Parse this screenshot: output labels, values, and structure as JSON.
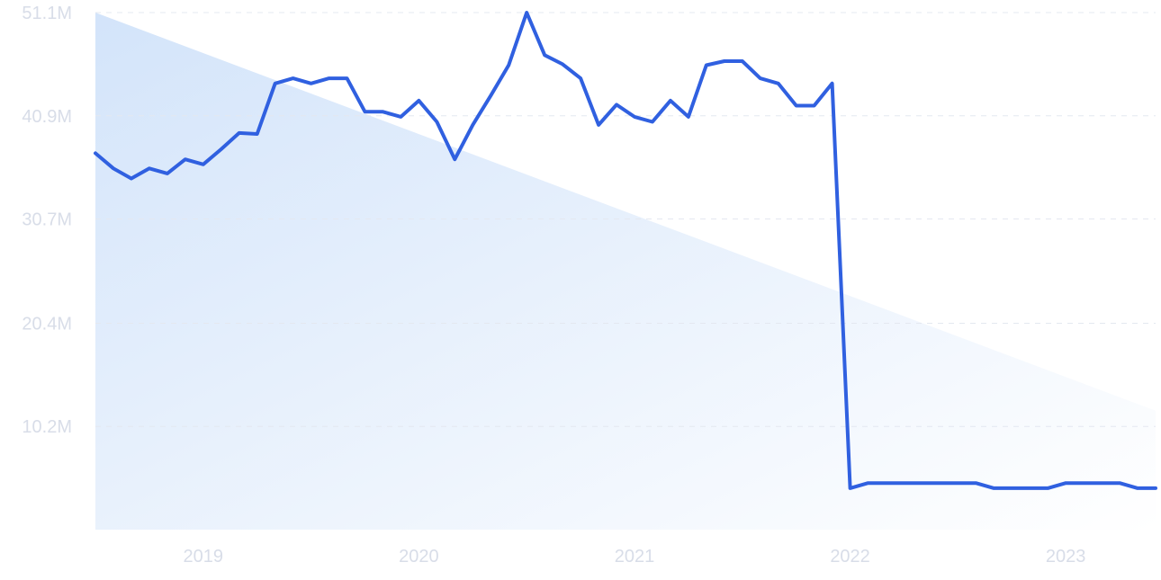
{
  "chart_data": {
    "type": "line",
    "title": "",
    "xlabel": "",
    "ylabel": "",
    "y_ticks": [
      "51.1M",
      "40.9M",
      "30.7M",
      "20.4M",
      "10.2M"
    ],
    "y_tick_values": [
      51.1,
      40.9,
      30.7,
      20.4,
      10.2
    ],
    "ylim": [
      0,
      51.1
    ],
    "x_ticks": [
      "2019",
      "2020",
      "2021",
      "2022",
      "2023"
    ],
    "x_tick_values": [
      "2019-01",
      "2020-01",
      "2021-01",
      "2022-01",
      "2023-01"
    ],
    "grid": true,
    "legend": "none",
    "colors": {
      "line": "#3060e0",
      "fill": "#d6e6fb",
      "grid": "#e4e8f0",
      "tick": "#d8dde8"
    },
    "series": [
      {
        "x": [
          "2018-07",
          "2018-08",
          "2018-09",
          "2018-10",
          "2018-11",
          "2018-12",
          "2019-01",
          "2019-02",
          "2019-03",
          "2019-04",
          "2019-05",
          "2019-06",
          "2019-07",
          "2019-08",
          "2019-09",
          "2019-10",
          "2019-11",
          "2019-12",
          "2020-01",
          "2020-02",
          "2020-03",
          "2020-04",
          "2020-05",
          "2020-06",
          "2020-07",
          "2020-08",
          "2020-09",
          "2020-10",
          "2020-11",
          "2020-12",
          "2021-01",
          "2021-02",
          "2021-03",
          "2021-04",
          "2021-05",
          "2021-06",
          "2021-07",
          "2021-08",
          "2021-09",
          "2021-10",
          "2021-11",
          "2021-12",
          "2022-01",
          "2022-02",
          "2022-03",
          "2022-04",
          "2022-05",
          "2022-06",
          "2022-07",
          "2022-08",
          "2022-09",
          "2022-10",
          "2022-11",
          "2022-12",
          "2023-01",
          "2023-02",
          "2023-03",
          "2023-04",
          "2023-05",
          "2023-06"
        ],
        "values": [
          37.2,
          35.7,
          34.7,
          35.7,
          35.2,
          36.6,
          36.1,
          37.6,
          39.2,
          39.1,
          44.1,
          44.6,
          44.1,
          44.6,
          44.6,
          41.3,
          41.3,
          40.8,
          42.4,
          40.3,
          36.6,
          40.0,
          42.9,
          45.9,
          51.1,
          46.9,
          46.0,
          44.6,
          40.0,
          42.0,
          40.8,
          40.3,
          42.4,
          40.8,
          45.9,
          46.3,
          46.3,
          44.6,
          44.1,
          41.9,
          41.9,
          44.1,
          4.1,
          4.6,
          4.6,
          4.6,
          4.6,
          4.6,
          4.6,
          4.6,
          4.1,
          4.1,
          4.1,
          4.1,
          4.6,
          4.6,
          4.6,
          4.6,
          4.1,
          4.1
        ]
      }
    ]
  }
}
